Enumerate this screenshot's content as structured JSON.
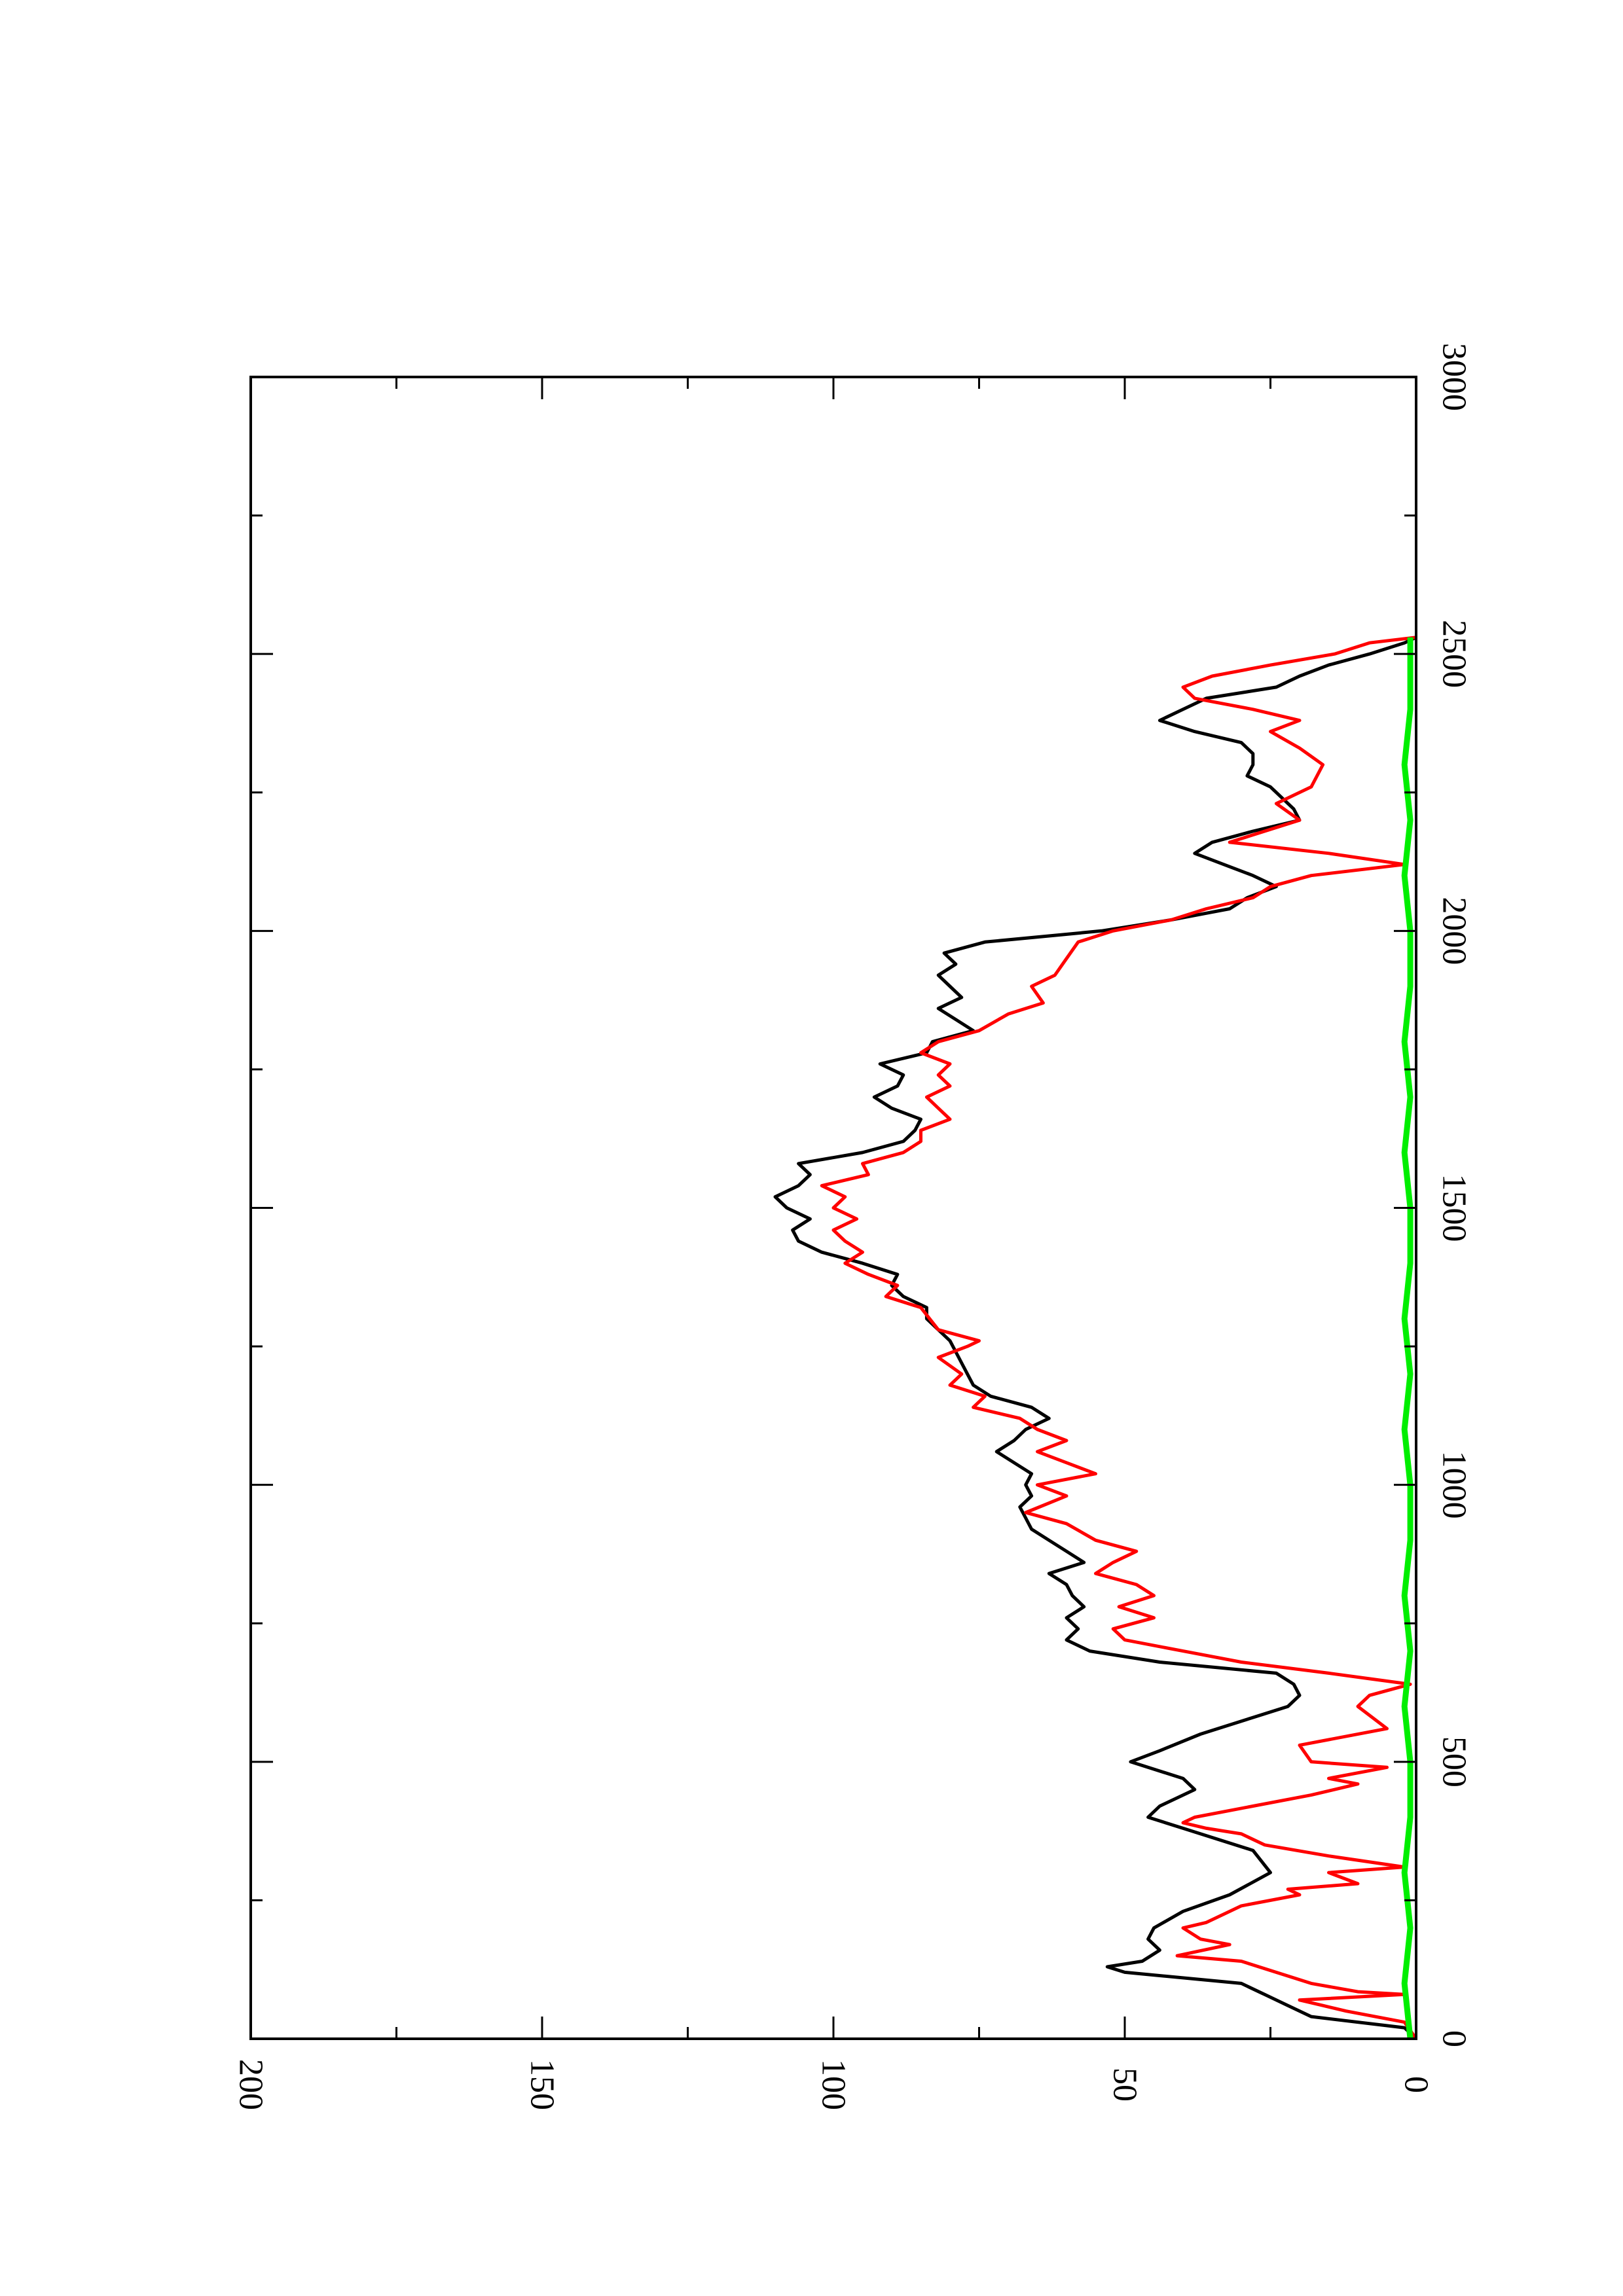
{
  "chart_data": {
    "type": "line",
    "orientation": "rotated 90 degrees clockwise on the page (x axis runs from bottom to top, y axis from right to left)",
    "title": "",
    "xlabel": "",
    "ylabel": "",
    "xlim": [
      0,
      3000
    ],
    "ylim": [
      0,
      200
    ],
    "x_ticks": [
      0,
      500,
      1000,
      1500,
      2000,
      2500,
      3000
    ],
    "y_ticks": [
      0,
      50,
      100,
      150,
      200
    ],
    "x_minor_step": 250,
    "y_minor_step": 25,
    "grid": false,
    "legend": "none",
    "series": [
      {
        "color": "#000000",
        "x": [
          0,
          20,
          40,
          60,
          80,
          100,
          120,
          130,
          140,
          160,
          180,
          200,
          230,
          260,
          300,
          340,
          380,
          400,
          420,
          450,
          470,
          500,
          520,
          550,
          580,
          600,
          620,
          640,
          660,
          680,
          700,
          720,
          740,
          760,
          780,
          800,
          820,
          840,
          860,
          880,
          900,
          920,
          940,
          960,
          980,
          1000,
          1020,
          1040,
          1060,
          1080,
          1100,
          1120,
          1140,
          1160,
          1180,
          1200,
          1220,
          1240,
          1260,
          1280,
          1300,
          1320,
          1340,
          1360,
          1380,
          1400,
          1420,
          1440,
          1460,
          1480,
          1500,
          1520,
          1540,
          1560,
          1580,
          1600,
          1620,
          1640,
          1660,
          1680,
          1700,
          1720,
          1740,
          1760,
          1780,
          1800,
          1820,
          1840,
          1860,
          1880,
          1900,
          1920,
          1940,
          1960,
          1980,
          2000,
          2020,
          2040,
          2060,
          2080,
          2100,
          2120,
          2140,
          2160,
          2180,
          2200,
          2220,
          2240,
          2260,
          2280,
          2300,
          2320,
          2340,
          2360,
          2380,
          2400,
          2420,
          2440,
          2460,
          2480,
          2500,
          2520,
          2530
        ],
        "y": [
          0,
          2,
          18,
          22,
          26,
          30,
          50,
          53,
          47,
          44,
          46,
          45,
          40,
          32,
          25,
          28,
          40,
          46,
          44,
          38,
          40,
          49,
          44,
          37,
          28,
          22,
          20,
          21,
          24,
          44,
          56,
          60,
          58,
          60,
          57,
          59,
          60,
          63,
          57,
          60,
          63,
          66,
          67,
          68,
          66,
          67,
          66,
          69,
          72,
          69,
          67,
          63,
          66,
          73,
          76,
          77,
          78,
          79,
          80,
          82,
          84,
          84,
          88,
          90,
          89,
          95,
          102,
          106,
          107,
          104,
          108,
          110,
          106,
          104,
          106,
          95,
          88,
          86,
          85,
          90,
          93,
          89,
          88,
          92,
          84,
          83,
          76,
          79,
          82,
          78,
          80,
          82,
          79,
          81,
          74,
          54,
          42,
          32,
          29,
          24,
          28,
          33,
          38,
          35,
          28,
          20,
          21,
          23,
          25,
          29,
          28,
          28,
          30,
          38,
          44,
          40,
          36,
          24,
          20,
          15,
          8,
          2,
          0
        ]
      },
      {
        "color": "#ff0000",
        "x": [
          0,
          30,
          50,
          60,
          70,
          80,
          85,
          100,
          140,
          150,
          170,
          180,
          200,
          210,
          240,
          260,
          270,
          280,
          300,
          310,
          330,
          350,
          370,
          380,
          390,
          400,
          420,
          440,
          460,
          470,
          490,
          500,
          530,
          560,
          600,
          620,
          640,
          650,
          660,
          680,
          700,
          720,
          740,
          760,
          780,
          800,
          820,
          840,
          860,
          880,
          900,
          930,
          950,
          980,
          1000,
          1020,
          1040,
          1060,
          1080,
          1100,
          1120,
          1140,
          1160,
          1180,
          1200,
          1230,
          1250,
          1260,
          1280,
          1320,
          1340,
          1360,
          1380,
          1400,
          1420,
          1440,
          1460,
          1480,
          1500,
          1520,
          1540,
          1560,
          1580,
          1600,
          1620,
          1640,
          1660,
          1680,
          1700,
          1720,
          1740,
          1760,
          1780,
          1800,
          1820,
          1850,
          1870,
          1900,
          1920,
          1950,
          1980,
          2000,
          2020,
          2040,
          2060,
          2080,
          2100,
          2120,
          2140,
          2160,
          2180,
          2200,
          2230,
          2260,
          2300,
          2330,
          2360,
          2380,
          2400,
          2420,
          2440,
          2460,
          2480,
          2500,
          2520,
          2530
        ],
        "y": [
          0,
          2,
          12,
          16,
          20,
          2,
          10,
          18,
          30,
          41,
          32,
          37,
          40,
          36,
          30,
          20,
          22,
          10,
          15,
          2,
          15,
          26,
          30,
          36,
          40,
          38,
          28,
          18,
          10,
          15,
          5,
          18,
          20,
          5,
          10,
          8,
          1,
          8,
          15,
          30,
          40,
          50,
          52,
          45,
          51,
          45,
          48,
          55,
          52,
          48,
          55,
          60,
          67,
          60,
          65,
          55,
          60,
          65,
          60,
          65,
          68,
          76,
          74,
          80,
          78,
          82,
          77,
          75,
          82,
          85,
          91,
          89,
          94,
          98,
          95,
          98,
          100,
          96,
          100,
          98,
          102,
          94,
          95,
          88,
          85,
          85,
          80,
          82,
          84,
          80,
          82,
          80,
          85,
          82,
          75,
          70,
          64,
          66,
          62,
          60,
          58,
          52,
          42,
          36,
          28,
          25,
          18,
          2,
          15,
          32,
          26,
          20,
          24,
          18,
          16,
          20,
          25,
          20,
          28,
          38,
          40,
          35,
          25,
          14,
          8,
          0
        ]
      },
      {
        "color": "#00ee00",
        "x": [
          0,
          100,
          200,
          300,
          400,
          500,
          600,
          700,
          800,
          900,
          1000,
          1100,
          1200,
          1300,
          1400,
          1500,
          1600,
          1700,
          1800,
          1900,
          2000,
          2100,
          2200,
          2300,
          2400,
          2500,
          2530
        ],
        "y": [
          1,
          2,
          1,
          2,
          1,
          1,
          2,
          1,
          2,
          1,
          1,
          2,
          1,
          2,
          1,
          1,
          2,
          1,
          2,
          1,
          1,
          2,
          1,
          2,
          1,
          1,
          1
        ]
      }
    ]
  }
}
